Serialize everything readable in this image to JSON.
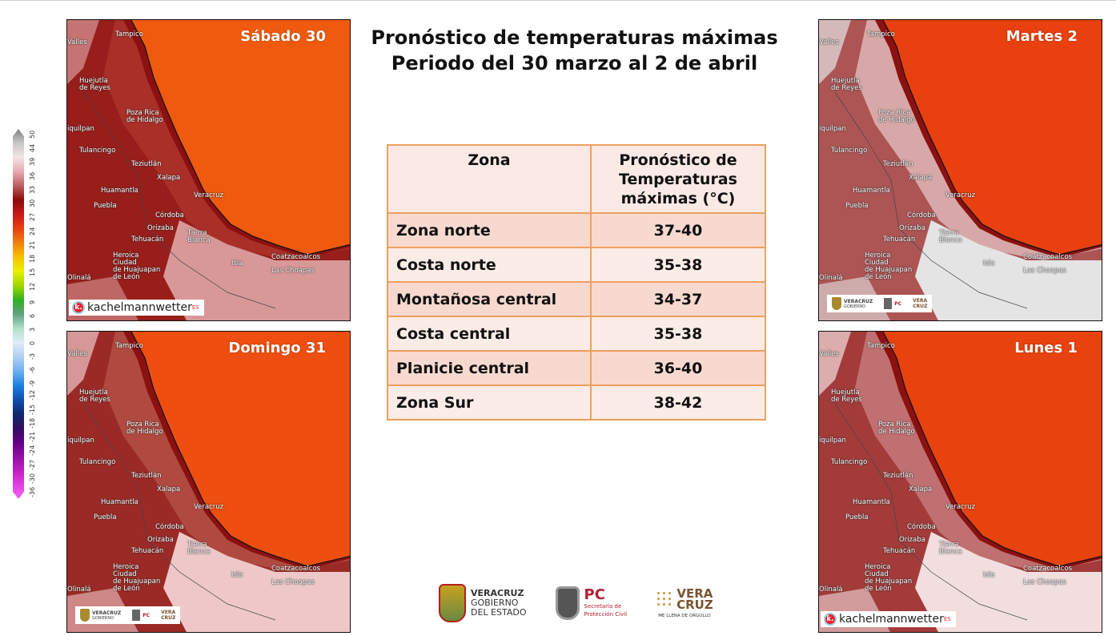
{
  "title": {
    "line1": "Pronóstico de temperaturas máximas",
    "line2": "Periodo del 30 marzo al 2 de abril"
  },
  "colorbar": {
    "ticks": [
      "50",
      "44",
      "39",
      "36",
      "33",
      "30",
      "27",
      "24",
      "21",
      "18",
      "15",
      "12",
      "9",
      "6",
      "3",
      "0",
      "-3",
      "-6",
      "-9",
      "-12",
      "-15",
      "-18",
      "-21",
      "-24",
      "-27",
      "-30",
      "-36"
    ],
    "colors": [
      "#808080",
      "#c8c8c8",
      "#f4e4e4",
      "#e8a8b0",
      "#b86060",
      "#8b0a0a",
      "#c81818",
      "#e84010",
      "#f08010",
      "#f8c000",
      "#e8f000",
      "#a0d800",
      "#30b020",
      "#60a080",
      "#b0e0c8",
      "#e0ecf8",
      "#b0d0f0",
      "#70b0f0",
      "#2080e0",
      "#1050b0",
      "#102870",
      "#301060",
      "#600080",
      "#9010a0",
      "#c020c0",
      "#e040e0",
      "#f060f0"
    ]
  },
  "table": {
    "headers": [
      "Zona",
      "Pronóstico de Temperaturas máximas (°C)"
    ],
    "rows": [
      {
        "zona": "Zona norte",
        "valor": "37-40"
      },
      {
        "zona": "Costa norte",
        "valor": "35-38"
      },
      {
        "zona": "Montañosa central",
        "valor": "34-37"
      },
      {
        "zona": "Costa central",
        "valor": "35-38"
      },
      {
        "zona": "Planicie central",
        "valor": "36-40"
      },
      {
        "zona": "Zona Sur",
        "valor": "38-42"
      }
    ]
  },
  "cities": [
    "Tampico",
    "Valles",
    "Huejutla\nde Reyes",
    "Poza Rica\nde Hidalgo",
    "iquilpan",
    "Tulancingo",
    "Teziutlán",
    "Xalapa",
    "Huamantla",
    "Puebla",
    "Córdoba",
    "Orizaba",
    "Tehuacán",
    "Veracruz",
    "Tierra\nBlanca",
    "Heroica\nCiudad\nde Huajuapan\nde León",
    "Isla",
    "Coatzacoalcos",
    "Las Choapas",
    "Olinalá"
  ],
  "maps": [
    {
      "day": "Sábado 30",
      "logo": "kachelmann",
      "palette": {
        "sea": "#f05a0e",
        "coast": "#8b1010",
        "land": "#a83028",
        "low": "#d89898"
      }
    },
    {
      "day": "Domingo 31",
      "logo": "veracruz",
      "palette": {
        "sea": "#ee4e10",
        "coast": "#8b1010",
        "land": "#b04a40",
        "low": "#eec8c8"
      }
    },
    {
      "day": "Martes 2",
      "logo": "veracruz",
      "palette": {
        "sea": "#e8400e",
        "coast": "#8b1010",
        "land": "#d8a8a8",
        "low": "#e4e4e4"
      }
    },
    {
      "day": "Lunes 1",
      "logo": "kachelmann",
      "palette": {
        "sea": "#e8420e",
        "coast": "#8b1010",
        "land": "#c07070",
        "low": "#f2dede"
      }
    }
  ],
  "logos": {
    "kachelmann": "kachelmannwetter",
    "kachelmann_sup": "ES",
    "veracruz_l1": "VERACRUZ",
    "veracruz_l2": "GOBIERNO",
    "veracruz_l3": "DEL ESTADO",
    "pc": "PC",
    "pc_l1": "Secretaría de",
    "pc_l2": "Protección Civil",
    "vera1": "VERA",
    "vera2": "CRUZ",
    "vera_tag": "ME LLENA DE ORGULLO"
  }
}
